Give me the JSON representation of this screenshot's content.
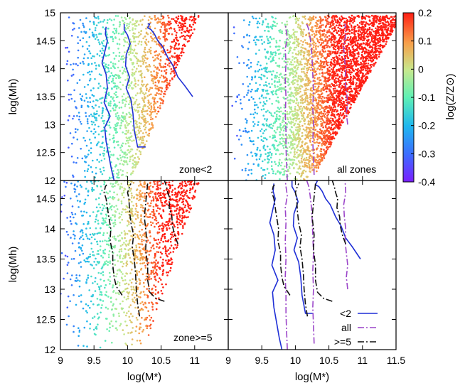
{
  "chart_data": {
    "type": "scatter",
    "xlabel": "log(M*)",
    "ylabel": "log(Mh)",
    "colorbar": {
      "label": "log(Z/Z⊙)",
      "range": [
        -0.4,
        0.2
      ],
      "ticks": [
        "0.2",
        "0.1",
        "0",
        "-0.1",
        "-0.2",
        "-0.3",
        "-0.4"
      ],
      "colormap": "rainbow"
    },
    "xlim_left": [
      9,
      11.5
    ],
    "xlim_right": [
      9,
      11.5
    ],
    "ylim_top": [
      12,
      15
    ],
    "ylim_bottom": [
      12,
      14.8
    ],
    "x_ticks_left": [
      "9",
      "9.5",
      "10",
      "10.5",
      "11"
    ],
    "x_ticks_right": [
      "9",
      "9.5",
      "10",
      "10.5",
      "11",
      "11.5"
    ],
    "y_ticks_top": [
      "12",
      "12.5",
      "13",
      "13.5",
      "14",
      "14.5",
      "15"
    ],
    "y_ticks_bottom": [
      "12",
      "12.5",
      "13",
      "13.5",
      "14",
      "14.5"
    ],
    "panels": [
      {
        "label": "zone<2",
        "position": "top-left",
        "points": "scatter",
        "lines": [
          "<2"
        ]
      },
      {
        "label": "all zones",
        "position": "top-right",
        "points": "scatter",
        "lines": [
          "all"
        ]
      },
      {
        "label": "zone>=5",
        "position": "bottom-left",
        "points": "scatter",
        "lines": [
          ">=5"
        ]
      },
      {
        "label": "",
        "position": "bottom-right",
        "points": "none",
        "lines": [
          "<2",
          "all",
          ">=5"
        ]
      }
    ],
    "series": [
      {
        "name": "<2",
        "color": "#1f2fd6",
        "dash": "solid",
        "lines": [
          {
            "x": [
              9.8,
              9.76,
              9.72,
              9.68,
              9.66,
              9.74,
              9.65,
              9.7,
              9.68,
              9.62,
              9.66,
              9.7,
              9.67,
              9.68
            ],
            "y": [
              12.0,
              12.2,
              12.45,
              12.7,
              12.95,
              13.15,
              13.4,
              13.65,
              13.9,
              14.1,
              14.3,
              14.5,
              14.62,
              14.75
            ]
          },
          {
            "x": [
              10.27,
              10.15,
              10.1,
              10.08,
              10.05,
              9.98,
              10.03,
              9.97,
              9.98,
              10.04,
              10.0,
              9.95,
              9.95
            ],
            "y": [
              12.6,
              12.6,
              12.9,
              13.2,
              13.45,
              13.65,
              13.85,
              14.05,
              14.25,
              14.45,
              14.6,
              14.7,
              14.8
            ]
          },
          {
            "x": [
              10.97,
              10.85,
              10.75,
              10.68,
              10.6,
              10.52,
              10.45,
              10.4,
              10.35,
              10.3,
              10.33,
              10.3
            ],
            "y": [
              13.5,
              13.7,
              13.85,
              14.05,
              14.2,
              14.4,
              14.5,
              14.62,
              14.7,
              14.73,
              14.8,
              14.8
            ]
          }
        ]
      },
      {
        "name": "all",
        "color": "#9b45c9",
        "dash": "dash-dot",
        "lines": [
          {
            "x": [
              9.88,
              9.87,
              9.86,
              9.86,
              9.85,
              9.86,
              9.85,
              9.86,
              9.85,
              9.88,
              9.86,
              9.85
            ],
            "y": [
              12.0,
              12.3,
              12.6,
              12.9,
              13.2,
              13.5,
              13.8,
              14.1,
              14.35,
              14.55,
              14.7,
              14.8
            ]
          },
          {
            "x": [
              10.28,
              10.27,
              10.26,
              10.27,
              10.26,
              10.27,
              10.26,
              10.25,
              10.24,
              10.22,
              10.2,
              10.17
            ],
            "y": [
              12.1,
              12.4,
              12.7,
              13.0,
              13.3,
              13.6,
              13.9,
              14.15,
              14.35,
              14.55,
              14.7,
              14.8
            ]
          },
          {
            "x": [
              10.78,
              10.76,
              10.78,
              10.76,
              10.74,
              10.75,
              10.73,
              10.72,
              10.75,
              10.74
            ],
            "y": [
              13.0,
              13.2,
              13.4,
              13.6,
              13.8,
              14.0,
              14.2,
              14.4,
              14.6,
              14.8
            ]
          }
        ]
      },
      {
        "name": ">=5",
        "color": "#111111",
        "dash": "dash-dot",
        "lines": [
          {
            "x": [
              9.92,
              9.83,
              9.8,
              9.78,
              9.78,
              9.74,
              9.75,
              9.72,
              9.7,
              9.68,
              9.65,
              9.67,
              9.69
            ],
            "y": [
              12.9,
              13.05,
              13.2,
              13.4,
              13.6,
              13.8,
              14.0,
              14.2,
              14.35,
              14.5,
              14.6,
              14.7,
              14.73
            ]
          },
          {
            "x": [
              10.18,
              10.15,
              10.13,
              10.12,
              10.1,
              10.07,
              10.09,
              10.05,
              10.03,
              10.02,
              10.0,
              10.03,
              10.05
            ],
            "y": [
              12.55,
              12.75,
              13.0,
              13.25,
              13.5,
              13.7,
              13.9,
              14.1,
              14.3,
              14.5,
              14.6,
              14.7,
              14.75
            ]
          },
          {
            "x": [
              10.55,
              10.42,
              10.33,
              10.3,
              10.3,
              10.27,
              10.28,
              10.25,
              10.3
            ],
            "y": [
              12.8,
              12.85,
              12.95,
              13.15,
              13.4,
              13.65,
              13.9,
              14.2,
              14.75
            ]
          },
          {
            "x": [
              10.75,
              10.7,
              10.67,
              10.66,
              10.62,
              10.63,
              10.6,
              10.58,
              10.55
            ],
            "y": [
              13.75,
              13.9,
              14.05,
              14.2,
              14.35,
              14.5,
              14.6,
              14.7,
              14.8
            ]
          }
        ]
      }
    ],
    "legend": {
      "position": "bottom-right",
      "entries": [
        "<2",
        "all",
        ">=5"
      ]
    }
  }
}
